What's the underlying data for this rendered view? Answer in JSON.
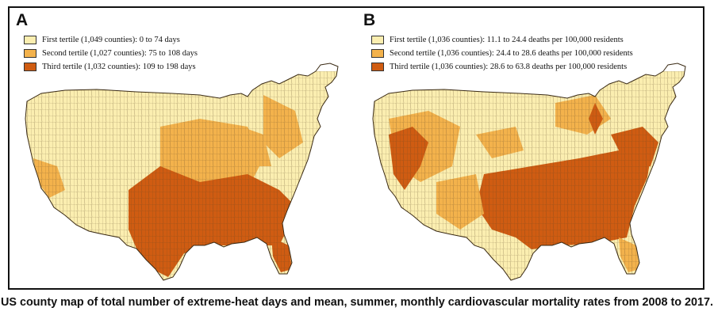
{
  "colors": {
    "tertile_1": "#fbeeb0",
    "tertile_2": "#f3b24c",
    "tertile_3": "#cf5c12",
    "border": "#3a2a14"
  },
  "panels": [
    {
      "letter": "A",
      "legend": [
        {
          "label": "First tertile (1,049 counties): 0 to 74 days",
          "tertile": 1
        },
        {
          "label": "Second tertile (1,027 counties): 75 to 108 days",
          "tertile": 2
        },
        {
          "label": "Third tertile (1,032 counties): 109 to 198 days",
          "tertile": 3
        }
      ]
    },
    {
      "letter": "B",
      "legend": [
        {
          "label": "First tertile (1,036 counties): 11.1 to 24.4 deaths per 100,000 residents",
          "tertile": 1
        },
        {
          "label": "Second tertile (1,036 counties): 24.4 to 28.6 deaths per 100,000 residents",
          "tertile": 2
        },
        {
          "label": "Third tertile (1,036 counties): 28.6 to 63.8 deaths per 100,000 residents",
          "tertile": 3
        }
      ]
    }
  ],
  "caption": "US county map of total number of extreme-heat days and mean, summer, monthly cardiovascular mortality rates from 2008 to 2017."
}
